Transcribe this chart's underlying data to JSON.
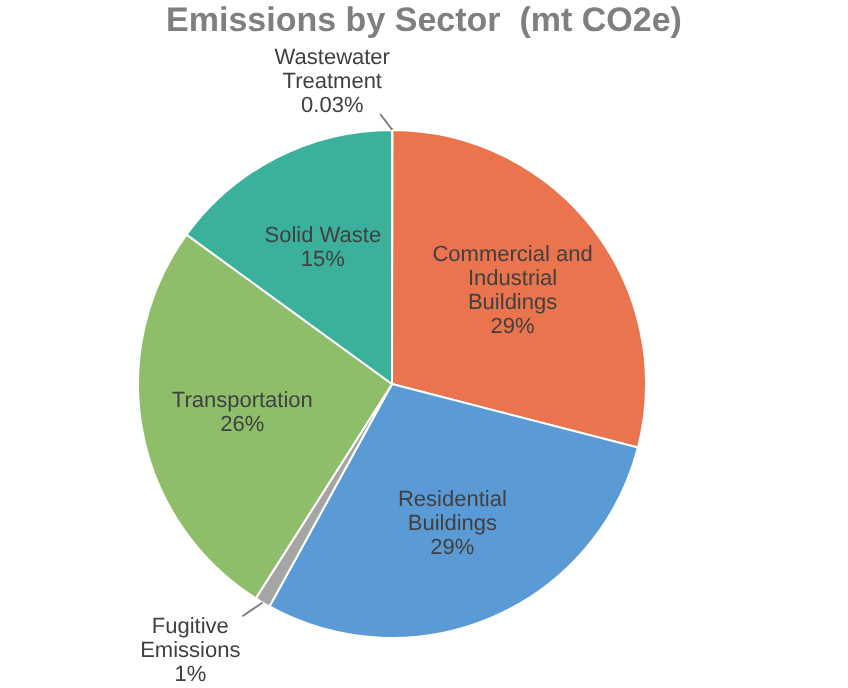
{
  "chart_data": {
    "type": "pie",
    "title": "Emissions by Sector  (mt CO2e)",
    "categories": [
      "Wastewater Treatment",
      "Commercial and Industrial Buildings",
      "Residential Buildings",
      "Fugitive Emissions",
      "Transportation",
      "Solid Waste"
    ],
    "values": [
      0.03,
      29,
      29,
      1,
      26,
      15
    ],
    "colors": [
      "#ffc000",
      "#e9744e",
      "#5b9bd5",
      "#a5a5a5",
      "#8fbe6a",
      "#3bb09a"
    ],
    "value_labels": [
      "0.03%",
      "29%",
      "29%",
      "1%",
      "26%",
      "15%"
    ],
    "legend": false
  }
}
